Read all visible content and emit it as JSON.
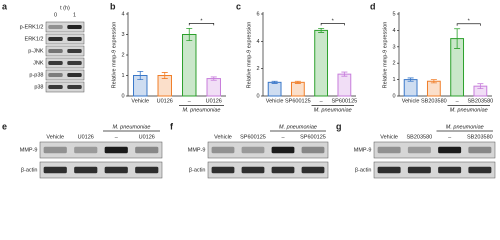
{
  "chart_data": [
    {
      "type": "bar",
      "panel": "b",
      "y_label": "Relative mmp-9 expression",
      "categories": [
        "Vehicle",
        "U0126",
        "–",
        "U0126"
      ],
      "group_label": "M. pneumoniae",
      "values": [
        1.0,
        1.0,
        3.0,
        0.85
      ],
      "errors": [
        0.2,
        0.15,
        0.3,
        0.08
      ],
      "colors": [
        "#3a78c9",
        "#f07f2a",
        "#2ca02c",
        "#c77ddb"
      ],
      "ylim": [
        0,
        4
      ],
      "yticks": [
        0,
        1,
        2,
        3,
        4
      ],
      "significance": "*"
    },
    {
      "type": "bar",
      "panel": "c",
      "y_label": "Relative mmp-9 expression",
      "categories": [
        "Vehicle",
        "SP600125",
        "–",
        "SP600125"
      ],
      "group_label": "M. pneumoniae",
      "values": [
        1.0,
        1.0,
        4.8,
        1.6
      ],
      "errors": [
        0.08,
        0.08,
        0.15,
        0.15
      ],
      "colors": [
        "#3a78c9",
        "#f07f2a",
        "#2ca02c",
        "#c77ddb"
      ],
      "ylim": [
        0,
        6
      ],
      "yticks": [
        0,
        2,
        4,
        6
      ],
      "significance": "*"
    },
    {
      "type": "bar",
      "panel": "d",
      "y_label": "Relative mmp-9 expression",
      "categories": [
        "Vehicle",
        "SB203580",
        "–",
        "SB203580"
      ],
      "group_label": "M. pneumoniae",
      "values": [
        1.0,
        0.9,
        3.5,
        0.6
      ],
      "errors": [
        0.1,
        0.1,
        0.6,
        0.15
      ],
      "colors": [
        "#3a78c9",
        "#f07f2a",
        "#2ca02c",
        "#c77ddb"
      ],
      "ylim": [
        0,
        5
      ],
      "yticks": [
        0,
        1,
        2,
        3,
        4,
        5
      ],
      "significance": "*"
    }
  ],
  "blots": [
    {
      "panel": "a",
      "header": "t (h)",
      "columns": [
        "0",
        "1"
      ],
      "rows": [
        "p-ERK1/2",
        "ERK1/2",
        "p-JNK",
        "JNK",
        "p-p38",
        "p38"
      ]
    },
    {
      "panel": "e",
      "columns": [
        "Vehicle",
        "U0126",
        "–",
        "U0126"
      ],
      "group_label": "M. pneumoniae",
      "rows": [
        "MMP-9",
        "β-actin"
      ]
    },
    {
      "panel": "f",
      "columns": [
        "Vehicle",
        "SP600125",
        "–",
        "SP600125"
      ],
      "group_label": "M. pneumoniae",
      "rows": [
        "MMP-9",
        "β-actin"
      ]
    },
    {
      "panel": "g",
      "columns": [
        "Vehicle",
        "SB203580",
        "–",
        "SB203580"
      ],
      "group_label": "M. pneumoniae",
      "rows": [
        "MMP-9",
        "β-actin"
      ]
    }
  ]
}
